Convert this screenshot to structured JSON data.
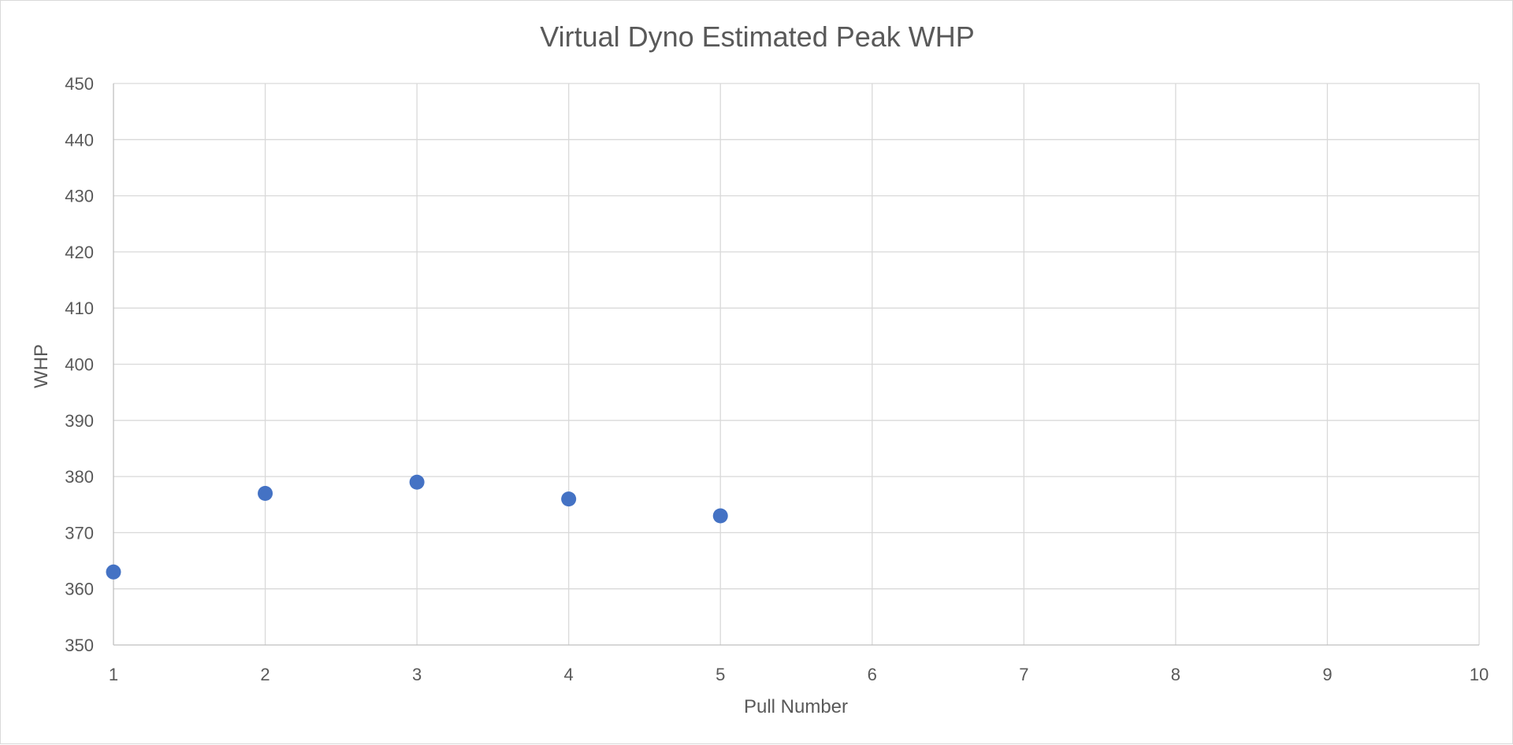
{
  "chart_data": {
    "type": "scatter",
    "title": "Virtual Dyno Estimated Peak WHP",
    "xlabel": "Pull Number",
    "ylabel": "WHP",
    "xlim": [
      1,
      10
    ],
    "ylim": [
      350,
      450
    ],
    "x_ticks": [
      1,
      2,
      3,
      4,
      5,
      6,
      7,
      8,
      9,
      10
    ],
    "y_ticks": [
      350,
      360,
      370,
      380,
      390,
      400,
      410,
      420,
      430,
      440,
      450
    ],
    "grid": true,
    "legend": "none",
    "series": [
      {
        "x": [
          1,
          2,
          3,
          4,
          5
        ],
        "y": [
          363,
          377,
          379,
          376,
          373
        ],
        "color": "#4472C4"
      }
    ]
  }
}
